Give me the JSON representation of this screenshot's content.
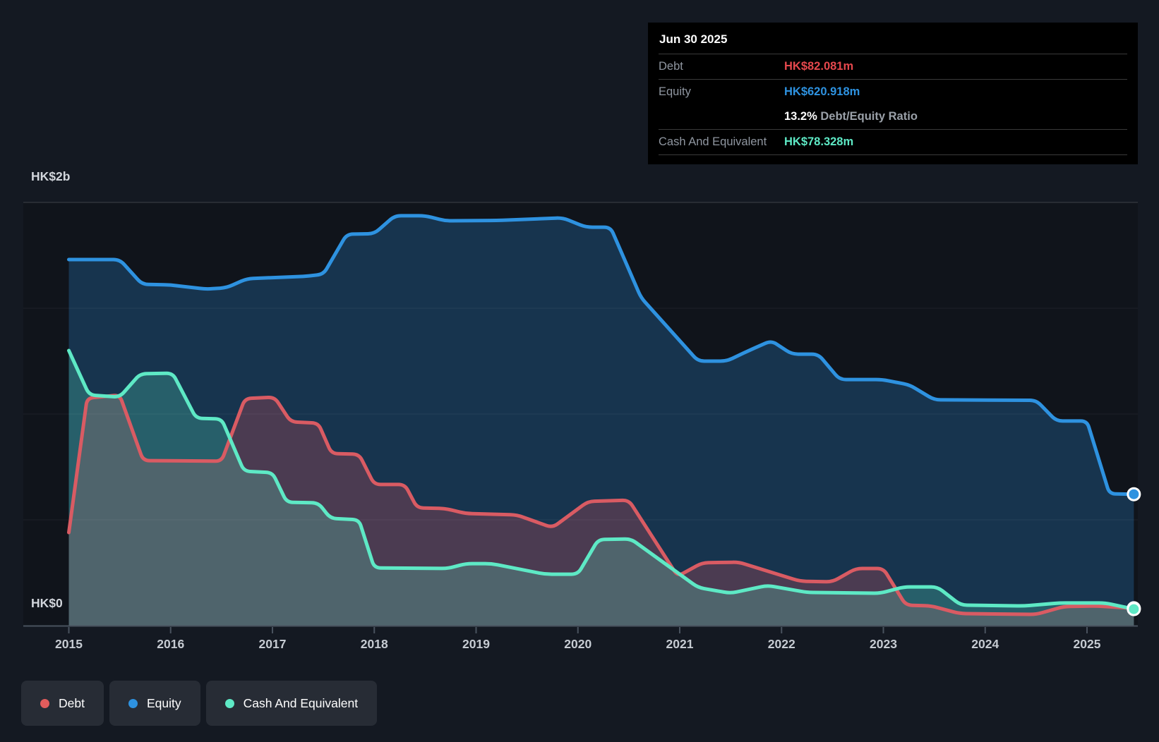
{
  "y_axis": {
    "top_label": "HK$2b",
    "bottom_label": "HK$0"
  },
  "tooltip": {
    "date": "Jun 30 2025",
    "debt_label": "Debt",
    "debt_value": "HK$82.081m",
    "equity_label": "Equity",
    "equity_value": "HK$620.918m",
    "ratio_value": "13.2%",
    "ratio_label": "Debt/Equity Ratio",
    "cash_label": "Cash And Equivalent",
    "cash_value": "HK$78.328m"
  },
  "legend": {
    "items": [
      {
        "label": "Debt",
        "color": "#e25c5c"
      },
      {
        "label": "Equity",
        "color": "#2e92e0"
      },
      {
        "label": "Cash And Equivalent",
        "color": "#5ee9c5"
      }
    ]
  },
  "chart_data": {
    "type": "area",
    "unit": "HK$ billions",
    "ylim": [
      0,
      2
    ],
    "y_gridlines_b": [
      0.5,
      1,
      1.5,
      2
    ],
    "x_ticks": [
      2015,
      2016,
      2017,
      2018,
      2019,
      2020,
      2021,
      2022,
      2023,
      2024,
      2025
    ],
    "x_range": [
      2015.0,
      2025.46
    ],
    "legend_position": "bottom-left",
    "series": [
      {
        "name": "Debt",
        "color": "#d95b63",
        "fill": "rgba(224,82,92,0.26)",
        "points": [
          [
            2015.0,
            0.44
          ],
          [
            2015.18,
            1.075
          ],
          [
            2015.5,
            1.09
          ],
          [
            2015.73,
            0.78
          ],
          [
            2016.5,
            0.777
          ],
          [
            2016.73,
            1.073
          ],
          [
            2017.02,
            1.08
          ],
          [
            2017.18,
            0.963
          ],
          [
            2017.45,
            0.957
          ],
          [
            2017.58,
            0.813
          ],
          [
            2017.85,
            0.81
          ],
          [
            2018.0,
            0.667
          ],
          [
            2018.3,
            0.667
          ],
          [
            2018.42,
            0.557
          ],
          [
            2018.7,
            0.553
          ],
          [
            2018.9,
            0.53
          ],
          [
            2019.4,
            0.523
          ],
          [
            2019.75,
            0.463
          ],
          [
            2020.1,
            0.587
          ],
          [
            2020.5,
            0.593
          ],
          [
            2020.98,
            0.233
          ],
          [
            2021.22,
            0.297
          ],
          [
            2021.58,
            0.3
          ],
          [
            2022.18,
            0.21
          ],
          [
            2022.5,
            0.207
          ],
          [
            2022.73,
            0.27
          ],
          [
            2023.0,
            0.27
          ],
          [
            2023.22,
            0.097
          ],
          [
            2023.47,
            0.093
          ],
          [
            2023.75,
            0.057
          ],
          [
            2024.5,
            0.053
          ],
          [
            2024.77,
            0.09
          ],
          [
            2025.1,
            0.093
          ],
          [
            2025.46,
            0.082
          ]
        ]
      },
      {
        "name": "Equity",
        "color": "#2e92e0",
        "fill": "rgba(46,146,224,0.26)",
        "points": [
          [
            2015.0,
            1.73
          ],
          [
            2015.5,
            1.73
          ],
          [
            2015.72,
            1.613
          ],
          [
            2016.0,
            1.61
          ],
          [
            2016.35,
            1.59
          ],
          [
            2016.55,
            1.597
          ],
          [
            2016.75,
            1.64
          ],
          [
            2017.3,
            1.65
          ],
          [
            2017.5,
            1.66
          ],
          [
            2017.73,
            1.85
          ],
          [
            2018.0,
            1.852
          ],
          [
            2018.2,
            1.937
          ],
          [
            2018.5,
            1.937
          ],
          [
            2018.7,
            1.913
          ],
          [
            2019.2,
            1.915
          ],
          [
            2019.85,
            1.927
          ],
          [
            2020.08,
            1.883
          ],
          [
            2020.32,
            1.883
          ],
          [
            2020.62,
            1.55
          ],
          [
            2021.18,
            1.25
          ],
          [
            2021.46,
            1.25
          ],
          [
            2021.68,
            1.3
          ],
          [
            2021.9,
            1.347
          ],
          [
            2022.1,
            1.283
          ],
          [
            2022.36,
            1.283
          ],
          [
            2022.57,
            1.163
          ],
          [
            2022.99,
            1.163
          ],
          [
            2023.26,
            1.137
          ],
          [
            2023.5,
            1.067
          ],
          [
            2024.5,
            1.065
          ],
          [
            2024.7,
            0.967
          ],
          [
            2025.0,
            0.967
          ],
          [
            2025.22,
            0.623
          ],
          [
            2025.46,
            0.621
          ]
        ]
      },
      {
        "name": "Cash And Equivalent",
        "color": "#5ee9c5",
        "fill": "rgba(94,233,197,0.24)",
        "points": [
          [
            2015.0,
            1.3
          ],
          [
            2015.2,
            1.09
          ],
          [
            2015.5,
            1.08
          ],
          [
            2015.7,
            1.19
          ],
          [
            2016.02,
            1.193
          ],
          [
            2016.25,
            0.98
          ],
          [
            2016.5,
            0.977
          ],
          [
            2016.72,
            0.73
          ],
          [
            2017.0,
            0.723
          ],
          [
            2017.14,
            0.583
          ],
          [
            2017.45,
            0.58
          ],
          [
            2017.57,
            0.507
          ],
          [
            2017.85,
            0.5
          ],
          [
            2018.0,
            0.273
          ],
          [
            2018.72,
            0.27
          ],
          [
            2018.9,
            0.293
          ],
          [
            2019.15,
            0.293
          ],
          [
            2019.68,
            0.243
          ],
          [
            2020.0,
            0.243
          ],
          [
            2020.2,
            0.407
          ],
          [
            2020.52,
            0.41
          ],
          [
            2021.18,
            0.18
          ],
          [
            2021.5,
            0.153
          ],
          [
            2021.86,
            0.19
          ],
          [
            2022.25,
            0.157
          ],
          [
            2022.97,
            0.153
          ],
          [
            2023.2,
            0.183
          ],
          [
            2023.53,
            0.183
          ],
          [
            2023.76,
            0.097
          ],
          [
            2024.38,
            0.093
          ],
          [
            2024.73,
            0.107
          ],
          [
            2025.18,
            0.107
          ],
          [
            2025.46,
            0.078
          ]
        ]
      }
    ]
  }
}
